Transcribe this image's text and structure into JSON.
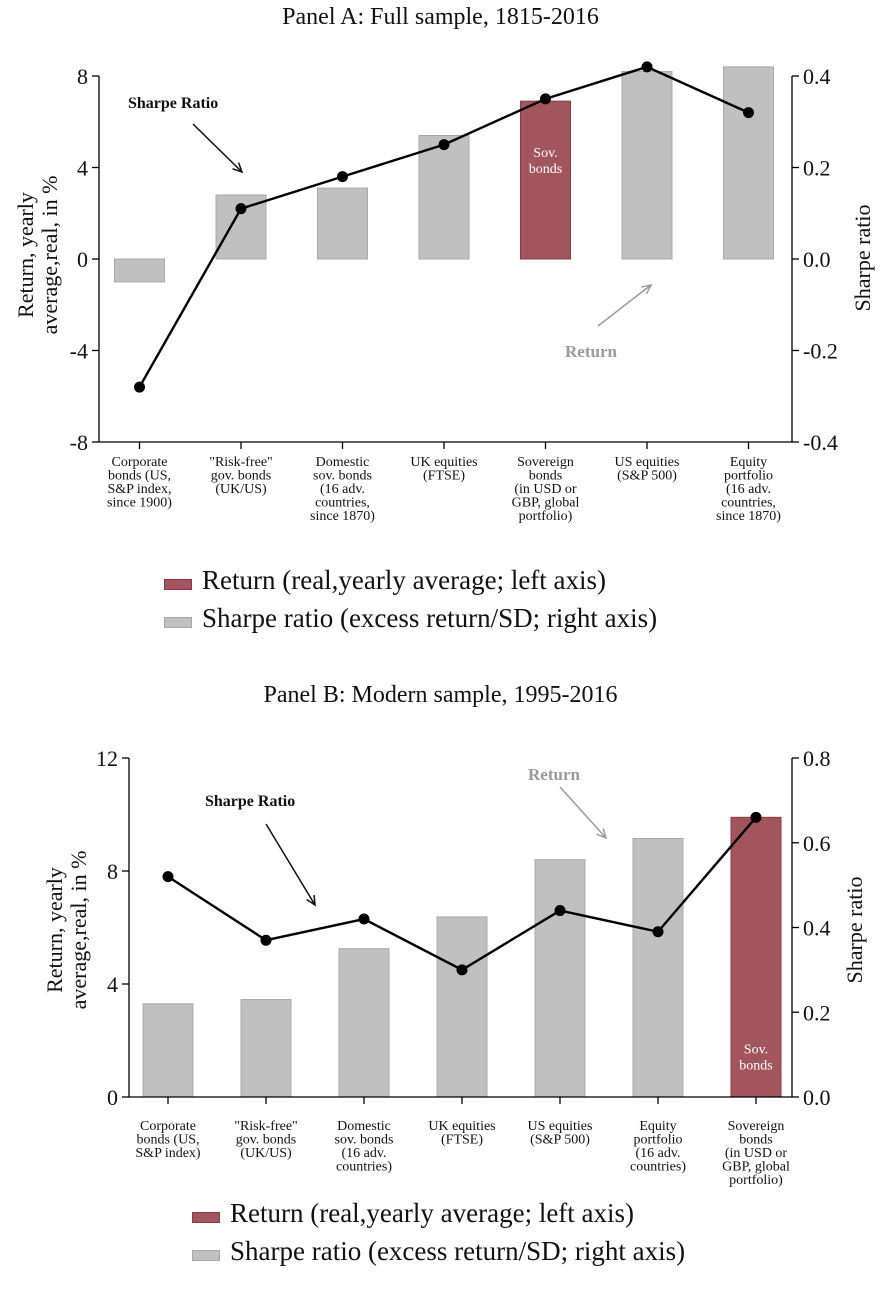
{
  "colors": {
    "bar_gray": "#c0c0c0",
    "bar_gray_stroke": "#a8a8a8",
    "highlight": "#a3555d",
    "highlight_stroke": "#8a3a44",
    "line": "#000000",
    "return_annotation": "#9a9a9a"
  },
  "chart_data": [
    {
      "type": "bar",
      "title": "Panel A: Full sample, 1815-2016",
      "ylabel_left": "Return, yearly average,real, in %",
      "ylabel_right": "Sharpe ratio",
      "ylim_left": [
        -8,
        8
      ],
      "yticks_left": [
        "-8",
        "-4",
        "0",
        "4",
        "8"
      ],
      "ylim_right": [
        -0.4,
        0.4
      ],
      "yticks_right": [
        "-0.4",
        "-0.2",
        "0.0",
        "0.2",
        "0.4"
      ],
      "categories": [
        [
          "Corporate",
          "bonds (US,",
          "S&P index,",
          "since 1900)"
        ],
        [
          "\"Risk-free\"",
          "gov. bonds",
          "(UK/US)"
        ],
        [
          "Domestic",
          "sov. bonds",
          "(16 adv.",
          "countries,",
          "since 1870)"
        ],
        [
          "UK equities",
          "(FTSE)"
        ],
        [
          "Sovereign",
          "bonds",
          "(in USD or",
          "GBP, global",
          "portfolio)"
        ],
        [
          "US equities",
          "(S&P 500)"
        ],
        [
          "Equity",
          "portfolio",
          "(16 adv.",
          "countries,",
          "since 1870)"
        ]
      ],
      "series": [
        {
          "name": "Return (real,yearly average; left axis)",
          "axis": "left",
          "kind": "line",
          "values": [
            -5.6,
            2.2,
            3.6,
            5.0,
            7.0,
            8.4,
            6.4
          ]
        },
        {
          "name": "Sharpe ratio (excess return/SD; right axis)",
          "axis": "right",
          "kind": "bar",
          "values": [
            -0.05,
            0.14,
            0.155,
            0.27,
            0.345,
            0.41,
            0.42
          ]
        }
      ],
      "highlight_index": 4,
      "highlight_label": [
        "Sov.",
        "bonds"
      ],
      "annotations": {
        "sharpe": "Sharpe Ratio",
        "return": "Return"
      },
      "legend": [
        "Return (real,yearly average; left axis)",
        "Sharpe ratio (excess return/SD; right axis)"
      ]
    },
    {
      "type": "bar",
      "title": "Panel B: Modern sample, 1995-2016",
      "ylabel_left": "Return, yearly average,real, in %",
      "ylabel_right": "Sharpe ratio",
      "ylim_left": [
        0,
        12
      ],
      "yticks_left": [
        "0",
        "4",
        "8",
        "12"
      ],
      "ylim_right": [
        0,
        0.8
      ],
      "yticks_right": [
        "0.0",
        "0.2",
        "0.4",
        "0.6",
        "0.8"
      ],
      "categories": [
        [
          "Corporate",
          "bonds (US,",
          "S&P index)"
        ],
        [
          "\"Risk-free\"",
          "gov. bonds",
          "(UK/US)"
        ],
        [
          "Domestic",
          "sov. bonds",
          "(16 adv.",
          "countries)"
        ],
        [
          "UK equities",
          "(FTSE)"
        ],
        [
          "US equities",
          "(S&P 500)"
        ],
        [
          "Equity",
          "portfolio",
          "(16 adv.",
          "countries)"
        ],
        [
          "Sovereign",
          "bonds",
          "(in USD or",
          "GBP, global",
          "portfolio)"
        ]
      ],
      "series": [
        {
          "name": "Return (real,yearly average; left axis)",
          "axis": "left",
          "kind": "line",
          "values": [
            7.8,
            5.55,
            6.3,
            4.5,
            6.6,
            5.85,
            9.9
          ]
        },
        {
          "name": "Sharpe ratio (excess return/SD; right axis)",
          "axis": "right",
          "kind": "bar",
          "values": [
            0.22,
            0.23,
            0.35,
            0.425,
            0.56,
            0.61,
            0.66
          ]
        }
      ],
      "highlight_index": 6,
      "highlight_label": [
        "Sov.",
        "bonds"
      ],
      "annotations": {
        "sharpe": "Sharpe Ratio",
        "return": "Return"
      },
      "legend": [
        "Return (real,yearly average; left axis)",
        "Sharpe ratio (excess return/SD; right axis)"
      ]
    }
  ]
}
